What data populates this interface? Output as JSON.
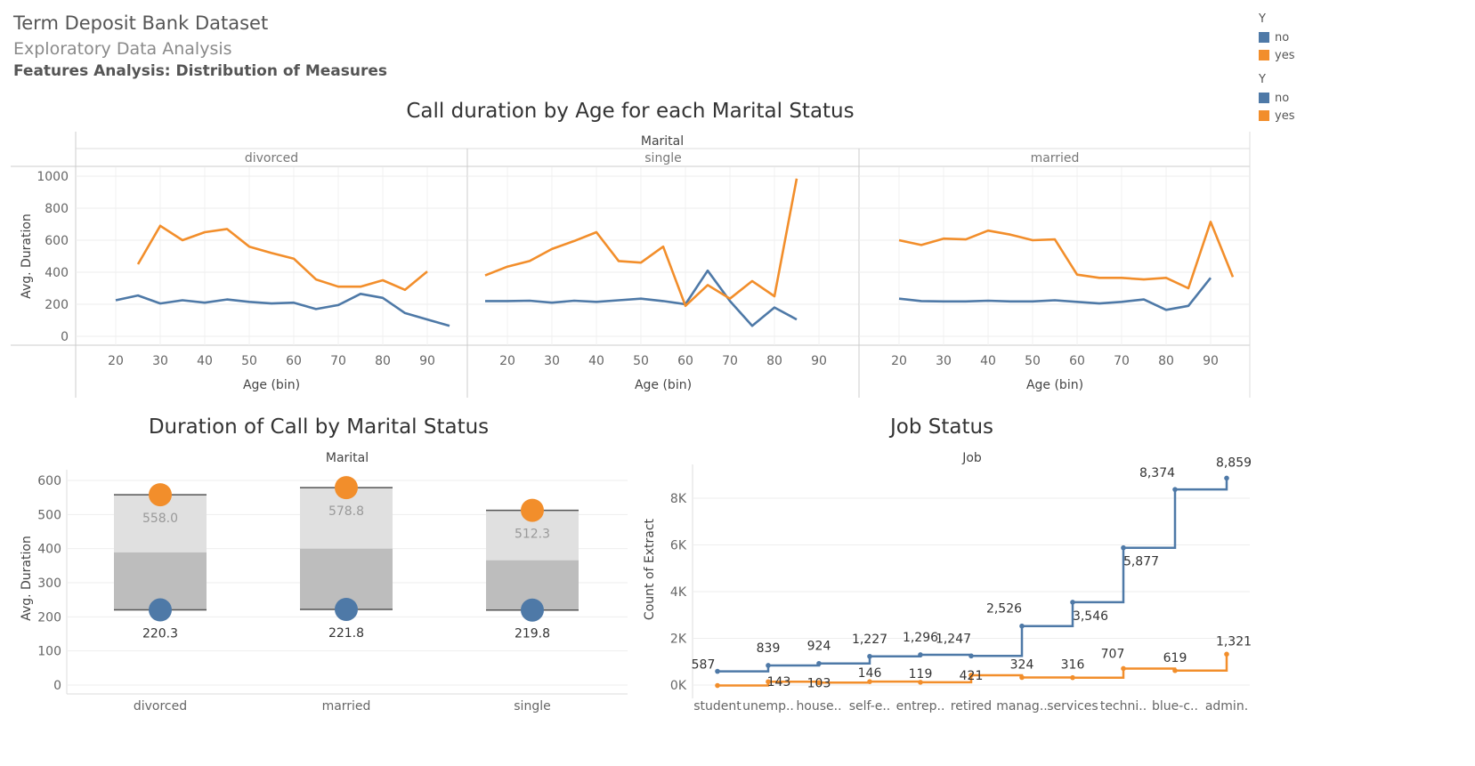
{
  "header": {
    "title": "Term Deposit Bank Dataset",
    "subtitle": "Exploratory Data Analysis",
    "section": "Features Analysis: Distribution of Measures"
  },
  "legends": [
    {
      "title": "Y",
      "items": [
        {
          "label": "no",
          "color": "#4e79a7"
        },
        {
          "label": "yes",
          "color": "#f28e2b"
        }
      ]
    },
    {
      "title": "Y",
      "items": [
        {
          "label": "no",
          "color": "#4e79a7"
        },
        {
          "label": "yes",
          "color": "#f28e2b"
        }
      ]
    }
  ],
  "chart_data": [
    {
      "type": "line",
      "title": "Call duration by Age for each Marital Status",
      "facet_label": "Marital",
      "ylabel": "Avg. Duration",
      "xlabel": "Age (bin)",
      "ylim": [
        0,
        1000
      ],
      "yticks": [
        0,
        200,
        400,
        600,
        800,
        1000
      ],
      "xticks": [
        20,
        30,
        40,
        50,
        60,
        70,
        80,
        90
      ],
      "xlim": [
        12,
        98
      ],
      "panels": [
        {
          "name": "divorced",
          "series": [
            {
              "name": "no",
              "x": [
                20,
                25,
                30,
                35,
                40,
                45,
                50,
                55,
                60,
                65,
                70,
                75,
                80,
                85,
                90,
                95
              ],
              "values": [
                225,
                255,
                205,
                225,
                210,
                230,
                215,
                205,
                210,
                170,
                195,
                265,
                240,
                145,
                105,
                65
              ]
            },
            {
              "name": "yes",
              "x": [
                25,
                30,
                35,
                40,
                45,
                50,
                55,
                60,
                65,
                70,
                75,
                80,
                85,
                90
              ],
              "values": [
                450,
                690,
                600,
                650,
                670,
                560,
                520,
                485,
                355,
                310,
                310,
                350,
                290,
                405
              ]
            }
          ]
        },
        {
          "name": "single",
          "series": [
            {
              "name": "no",
              "x": [
                15,
                20,
                25,
                30,
                35,
                40,
                45,
                50,
                55,
                60,
                65,
                70,
                75,
                80,
                85
              ],
              "values": [
                220,
                220,
                222,
                210,
                222,
                215,
                225,
                235,
                220,
                200,
                410,
                220,
                65,
                180,
                105
              ]
            },
            {
              "name": "yes",
              "x": [
                15,
                20,
                25,
                30,
                35,
                40,
                45,
                50,
                55,
                60,
                65,
                70,
                75,
                80,
                85
              ],
              "values": [
                380,
                435,
                470,
                545,
                595,
                650,
                470,
                460,
                560,
                190,
                320,
                235,
                345,
                250,
                985
              ]
            }
          ]
        },
        {
          "name": "married",
          "series": [
            {
              "name": "no",
              "x": [
                20,
                25,
                30,
                35,
                40,
                45,
                50,
                55,
                60,
                65,
                70,
                75,
                80,
                85,
                90
              ],
              "values": [
                235,
                220,
                218,
                218,
                222,
                218,
                218,
                225,
                215,
                205,
                215,
                230,
                165,
                190,
                365
              ]
            },
            {
              "name": "yes",
              "x": [
                20,
                25,
                30,
                35,
                40,
                45,
                50,
                55,
                60,
                65,
                70,
                75,
                80,
                85,
                90,
                95
              ],
              "values": [
                600,
                570,
                610,
                605,
                660,
                635,
                600,
                605,
                385,
                365,
                365,
                355,
                365,
                300,
                715,
                370
              ]
            }
          ]
        }
      ]
    },
    {
      "type": "bar",
      "title": "Duration of Call by Marital Status",
      "header": "Marital",
      "ylabel": "Avg. Duration",
      "ylim": [
        0,
        600
      ],
      "yticks": [
        0,
        100,
        200,
        300,
        400,
        500,
        600
      ],
      "categories": [
        "divorced",
        "married",
        "single"
      ],
      "yes": [
        558.0,
        578.8,
        512.3
      ],
      "no": [
        220.3,
        221.8,
        219.8
      ],
      "yes_labels": [
        "558.0",
        "578.8",
        "512.3"
      ],
      "no_labels": [
        "220.3",
        "221.8",
        "219.8"
      ],
      "band_mid": [
        389,
        400,
        366
      ]
    },
    {
      "type": "line",
      "title": "Job Status",
      "header": "Job",
      "ylabel": "Count of Extract",
      "ylim": [
        0,
        9000
      ],
      "yticks": [
        0,
        2000,
        4000,
        6000,
        8000
      ],
      "ytick_labels": [
        "0K",
        "2K",
        "4K",
        "6K",
        "8K"
      ],
      "categories": [
        "student",
        "unemp..",
        "house..",
        "self-e..",
        "entrep..",
        "retired",
        "manag..",
        "services",
        "techni..",
        "blue-c..",
        "admin."
      ],
      "series": [
        {
          "name": "no",
          "values": [
            587,
            839,
            924,
            1227,
            1296,
            1247,
            2526,
            3546,
            5877,
            8374,
            8859
          ],
          "labels": [
            "587",
            "839",
            "924",
            "1,227",
            "1,296",
            "1,247",
            "2,526",
            "3,546",
            "5,877",
            "8,374",
            "8,859"
          ]
        },
        {
          "name": "yes",
          "values": [
            -20,
            143,
            103,
            146,
            119,
            421,
            324,
            316,
            707,
            619,
            1321
          ],
          "labels": [
            "",
            "143",
            "103",
            "146",
            "119",
            "421",
            "324",
            "316",
            "707",
            "619",
            "1,321"
          ]
        }
      ]
    }
  ]
}
